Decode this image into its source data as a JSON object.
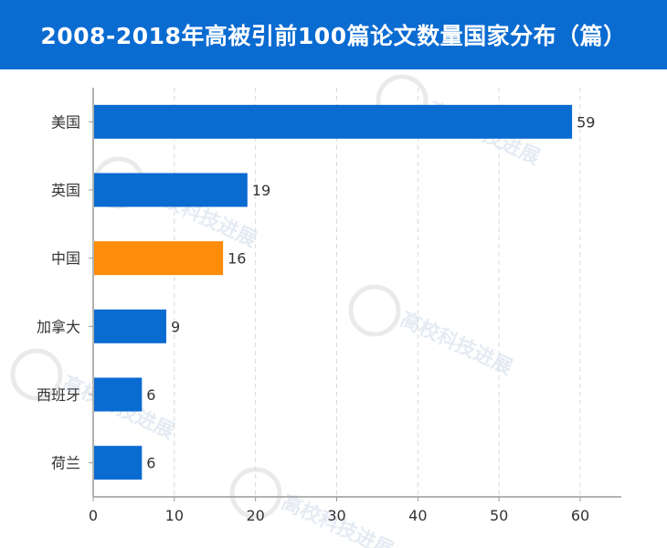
{
  "header": {
    "title": "2008-2018年高被引前100篇论文数量国家分布（篇）"
  },
  "watermark": {
    "text": "高校科技进展",
    "color": "#dfe7f1"
  },
  "colors": {
    "header_bg": "#0a6bd1",
    "bar_default": "#0a6bd1",
    "bar_highlight": "#ff8c0a",
    "axis": "#999999",
    "grid": "#d9d9d9"
  },
  "chart_data": {
    "type": "bar",
    "orientation": "horizontal",
    "title": "",
    "xlabel": "",
    "ylabel": "",
    "categories": [
      "美国",
      "英国",
      "中国",
      "加拿大",
      "西班牙",
      "荷兰"
    ],
    "values": [
      59,
      19,
      16,
      9,
      6,
      6
    ],
    "highlight": "中国",
    "xlim": [
      0,
      65
    ],
    "xticks": [
      0,
      10,
      20,
      30,
      40,
      50,
      60
    ],
    "grid": "vertical dashed",
    "legend": "none"
  }
}
